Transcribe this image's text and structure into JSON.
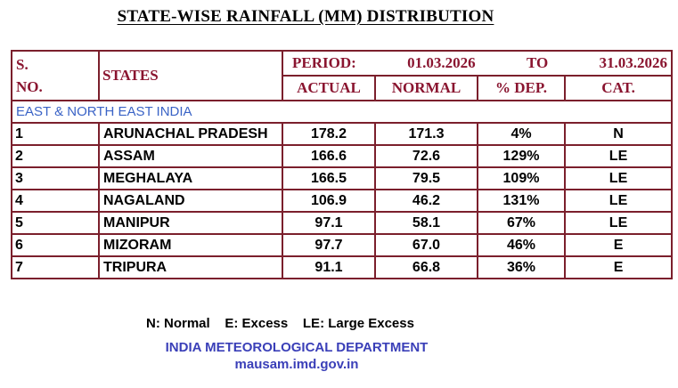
{
  "title": "STATE-WISE RAINFALL (MM) DISTRIBUTION",
  "header": {
    "sno_line1": "S.",
    "sno_line2": "NO.",
    "states": "STATES",
    "period_label": "PERIOD:",
    "from_date": "01.03.2026",
    "to_label": "TO",
    "to_date": "31.03.2026",
    "actual": "ACTUAL",
    "normal": "NORMAL",
    "dep": "% DEP.",
    "cat": "CAT."
  },
  "region": "EAST & NORTH EAST INDIA",
  "rows": [
    {
      "sno": "1",
      "state": "ARUNACHAL PRADESH",
      "actual": "178.2",
      "normal": "171.3",
      "dep": "4%",
      "cat": "N"
    },
    {
      "sno": "2",
      "state": "ASSAM",
      "actual": "166.6",
      "normal": "72.6",
      "dep": "129%",
      "cat": "LE"
    },
    {
      "sno": "3",
      "state": "MEGHALAYA",
      "actual": "166.5",
      "normal": "79.5",
      "dep": "109%",
      "cat": "LE"
    },
    {
      "sno": "4",
      "state": "NAGALAND",
      "actual": "106.9",
      "normal": "46.2",
      "dep": "131%",
      "cat": "LE"
    },
    {
      "sno": "5",
      "state": "MANIPUR",
      "actual": "97.1",
      "normal": "58.1",
      "dep": "67%",
      "cat": "LE"
    },
    {
      "sno": "6",
      "state": "MIZORAM",
      "actual": "97.7",
      "normal": "67.0",
      "dep": "46%",
      "cat": "E"
    },
    {
      "sno": "7",
      "state": "TRIPURA",
      "actual": "91.1",
      "normal": "66.8",
      "dep": "36%",
      "cat": "E"
    }
  ],
  "legend": "N: Normal    E: Excess    LE: Large Excess",
  "org": "INDIA METEOROLOGICAL DEPARTMENT",
  "website": "mausam.imd.gov.in"
}
